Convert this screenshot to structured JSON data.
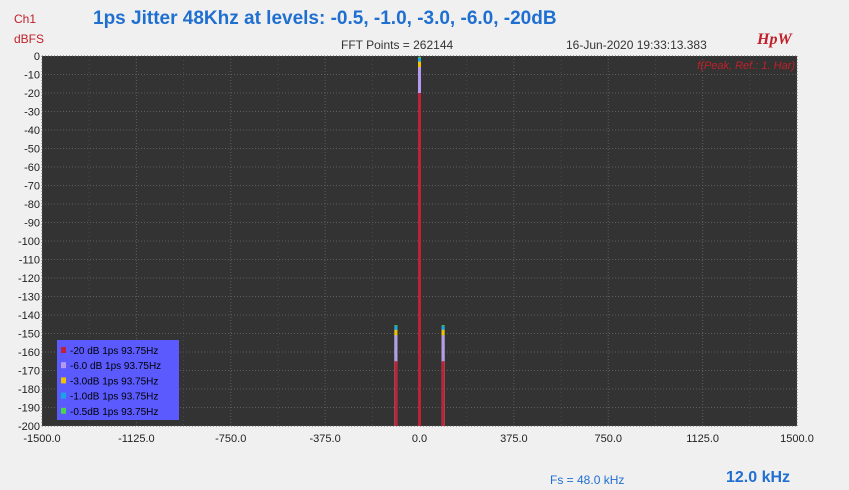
{
  "header": {
    "title": "1ps Jitter 48Khz at levels: -0.5, -1.0, -3.0, -6.0, -20dB",
    "channel": "Ch1",
    "unit": "dBFS",
    "fft_points": "FFT Points = 262144",
    "datetime": "16-Jun-2020 19:33:13.383",
    "logo": "HpW",
    "ref_note": "f(Peak, Ref.: 1. Har)"
  },
  "footer": {
    "fs": "Fs = 48.0 kHz",
    "span": "12.0 kHz"
  },
  "colors": {
    "plot_bg": "#333333",
    "grid": "#5e5e5e",
    "legend_bg": "#5a5aff",
    "accent_red": "#c0202a",
    "title_blue": "#1f6fd1"
  },
  "chart_data": {
    "type": "bar",
    "xlim": [
      -1500,
      1500
    ],
    "ylim": [
      -200,
      0
    ],
    "x_ticks": [
      -1500,
      -1125,
      -750,
      -375,
      0,
      375,
      750,
      1125,
      1500
    ],
    "x_tick_labels": [
      "-1500.0",
      "-1125.0",
      "-750.0",
      "-375.0",
      "0.0",
      "375.0",
      "750.0",
      "1125.0",
      "1500.0"
    ],
    "y_ticks": [
      0,
      -10,
      -20,
      -30,
      -40,
      -50,
      -60,
      -70,
      -80,
      -90,
      -100,
      -110,
      -120,
      -130,
      -140,
      -150,
      -160,
      -170,
      -180,
      -190,
      -200
    ],
    "y_tick_labels": [
      "0",
      "-10",
      "-20",
      "-30",
      "-40",
      "-50",
      "-60",
      "-70",
      "-80",
      "-90",
      "-100",
      "-110",
      "-120",
      "-130",
      "-140",
      "-150",
      "-160",
      "-170",
      "-180",
      "-190",
      "-200"
    ],
    "grid": true,
    "legend_position": "bottom-left",
    "series": [
      {
        "name": "-20 dB 1ps 93.75Hz",
        "color": "#c0203a",
        "points": [
          {
            "x": -93.75,
            "y": -165
          },
          {
            "x": 0,
            "y": -20
          },
          {
            "x": 93.75,
            "y": -165
          }
        ]
      },
      {
        "name": "-6.0 dB 1ps 93.75Hz",
        "color": "#b49bf0",
        "points": [
          {
            "x": -93.75,
            "y": -151
          },
          {
            "x": 0,
            "y": -6
          },
          {
            "x": 93.75,
            "y": -151
          }
        ]
      },
      {
        "name": "-3.0dB 1ps 93.75Hz",
        "color": "#f2c200",
        "points": [
          {
            "x": -93.75,
            "y": -148
          },
          {
            "x": 0,
            "y": -3
          },
          {
            "x": 93.75,
            "y": -148
          }
        ]
      },
      {
        "name": "-1.0dB 1ps 93.75Hz",
        "color": "#19a6e6",
        "points": [
          {
            "x": -93.75,
            "y": -146
          },
          {
            "x": 0,
            "y": -1
          },
          {
            "x": 93.75,
            "y": -146
          }
        ]
      },
      {
        "name": "-0.5dB 1ps 93.75Hz",
        "color": "#4cd64c",
        "points": [
          {
            "x": -93.75,
            "y": -145.5
          },
          {
            "x": 0,
            "y": -0.5
          },
          {
            "x": 93.75,
            "y": -145.5
          }
        ]
      }
    ]
  }
}
